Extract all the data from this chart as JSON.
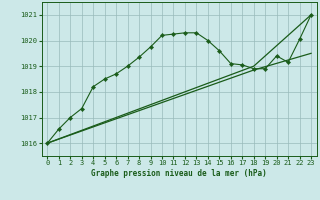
{
  "xlabel_label": "Graphe pression niveau de la mer (hPa)",
  "bg_color": "#cce8e8",
  "grid_color": "#99bbbb",
  "line_color": "#1a5c1a",
  "ylim": [
    1015.5,
    1021.5
  ],
  "xlim": [
    -0.5,
    23.5
  ],
  "yticks": [
    1016,
    1017,
    1018,
    1019,
    1020,
    1021
  ],
  "xticks": [
    0,
    1,
    2,
    3,
    4,
    5,
    6,
    7,
    8,
    9,
    10,
    11,
    12,
    13,
    14,
    15,
    16,
    17,
    18,
    19,
    20,
    21,
    22,
    23
  ],
  "line1_x": [
    0,
    1,
    2,
    3,
    4,
    5,
    6,
    7,
    8,
    9,
    10,
    11,
    12,
    13,
    14,
    15,
    16,
    17,
    18,
    19,
    20,
    21,
    22,
    23
  ],
  "line1_y": [
    1016.0,
    1016.55,
    1017.0,
    1017.35,
    1018.2,
    1018.5,
    1018.7,
    1019.0,
    1019.35,
    1019.75,
    1020.2,
    1020.25,
    1020.3,
    1020.3,
    1020.0,
    1019.6,
    1019.1,
    1019.05,
    1018.9,
    1018.9,
    1019.4,
    1019.15,
    1020.05,
    1021.0
  ],
  "line2_x": [
    0,
    18,
    23
  ],
  "line2_y": [
    1016.0,
    1019.0,
    1021.0
  ],
  "line3_x": [
    0,
    18,
    23
  ],
  "line3_y": [
    1016.0,
    1018.85,
    1019.5
  ]
}
